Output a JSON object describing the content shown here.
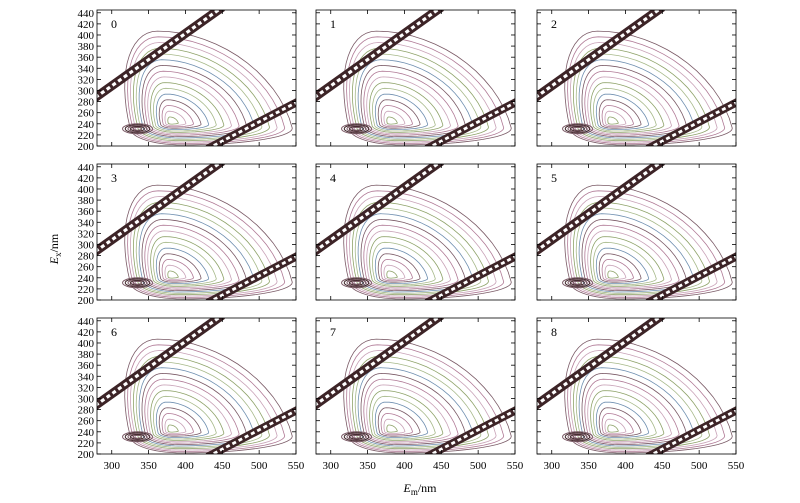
{
  "chart_data": {
    "type": "contour",
    "panels": [
      "0",
      "1",
      "2",
      "3",
      "4",
      "5",
      "6",
      "7",
      "8"
    ],
    "x_ticks": [
      300,
      350,
      400,
      450,
      500,
      550
    ],
    "y_ticks": [
      200,
      220,
      240,
      260,
      280,
      300,
      320,
      340,
      360,
      380,
      400,
      420,
      440
    ],
    "xlim": [
      280,
      550
    ],
    "ylim": [
      200,
      445
    ],
    "xlabel": {
      "base": "E",
      "sub": "m",
      "unit": "/nm"
    },
    "ylabel": {
      "base": "E",
      "sub": "x",
      "unit": "/nm"
    },
    "contour_colors": [
      "#7a5a66",
      "#b07a96",
      "#c9a3b8",
      "#8fa36a",
      "#a7b98a",
      "#6f8fb0"
    ],
    "scatter_band_color": "#3d2427"
  }
}
